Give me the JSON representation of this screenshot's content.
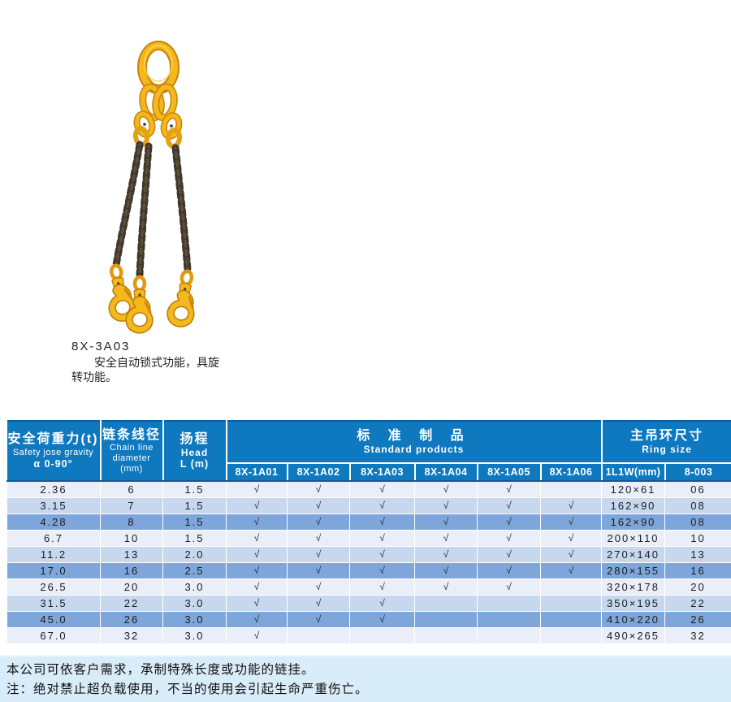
{
  "product": {
    "model": "8X-3A03",
    "desc_line1": "安全自动锁式功能，具旋",
    "desc_line2": "转功能。",
    "illustration": "three-leg-chain-sling-with-master-link-and-swivel-self-locking-hooks"
  },
  "colors": {
    "header_blue": "#0f79c0",
    "header_border": "#0a5c9e",
    "row_light": "#e9eef8",
    "row_medium": "#c7d8ee",
    "row_dark": "#7fa6da",
    "note_bg": "#d9ecf9",
    "sling_yellow": "#f4b71c",
    "chain_brown": "#40362a"
  },
  "table": {
    "check_glyph": "√",
    "header": {
      "load_cn": "安全荷重力(t)",
      "load_en": "Safety jose gravity",
      "load_angle": "α 0-90°",
      "chain_cn": "链条线径",
      "chain_en1": "Chain line",
      "chain_en2": "diameter",
      "chain_unit": "(mm)",
      "head_cn": "扬程",
      "head_en": "Head",
      "head_unit": "L (m)",
      "standard_cn": "标 准 制 品",
      "standard_en": "Standard products",
      "ring_cn": "主吊环尺寸",
      "ring_en": "Ring size",
      "model_1": "8X-1A01",
      "model_2": "8X-1A02",
      "model_3": "8X-1A03",
      "model_4": "8X-1A04",
      "model_5": "8X-1A05",
      "model_6": "8X-1A06",
      "ring_col_1": "1L1W(mm)",
      "ring_col_2": "8-003"
    },
    "rows": [
      {
        "load": "2.36",
        "dia": "6",
        "head": "1.5",
        "checks": [
          1,
          1,
          1,
          1,
          1,
          0
        ],
        "ring": "120×61",
        "code": "06"
      },
      {
        "load": "3.15",
        "dia": "7",
        "head": "1.5",
        "checks": [
          1,
          1,
          1,
          1,
          1,
          1
        ],
        "ring": "162×90",
        "code": "08"
      },
      {
        "load": "4.28",
        "dia": "8",
        "head": "1.5",
        "checks": [
          1,
          1,
          1,
          1,
          1,
          1
        ],
        "ring": "162×90",
        "code": "08"
      },
      {
        "load": "6.7",
        "dia": "10",
        "head": "1.5",
        "checks": [
          1,
          1,
          1,
          1,
          1,
          1
        ],
        "ring": "200×110",
        "code": "10"
      },
      {
        "load": "11.2",
        "dia": "13",
        "head": "2.0",
        "checks": [
          1,
          1,
          1,
          1,
          1,
          1
        ],
        "ring": "270×140",
        "code": "13"
      },
      {
        "load": "17.0",
        "dia": "16",
        "head": "2.5",
        "checks": [
          1,
          1,
          1,
          1,
          1,
          1
        ],
        "ring": "280×155",
        "code": "16"
      },
      {
        "load": "26.5",
        "dia": "20",
        "head": "3.0",
        "checks": [
          1,
          1,
          1,
          1,
          1,
          0
        ],
        "ring": "320×178",
        "code": "20"
      },
      {
        "load": "31.5",
        "dia": "22",
        "head": "3.0",
        "checks": [
          1,
          1,
          1,
          0,
          0,
          0
        ],
        "ring": "350×195",
        "code": "22"
      },
      {
        "load": "45.0",
        "dia": "26",
        "head": "3.0",
        "checks": [
          1,
          1,
          1,
          0,
          0,
          0
        ],
        "ring": "410×220",
        "code": "26"
      },
      {
        "load": "67.0",
        "dia": "32",
        "head": "3.0",
        "checks": [
          1,
          0,
          0,
          0,
          0,
          0
        ],
        "ring": "490×265",
        "code": "32"
      }
    ]
  },
  "notes": {
    "line1": "本公司可依客户需求，承制特殊长度或功能的链挂。",
    "line2": "注：绝对禁止超负载使用，不当的使用会引起生命严重伤亡。"
  }
}
